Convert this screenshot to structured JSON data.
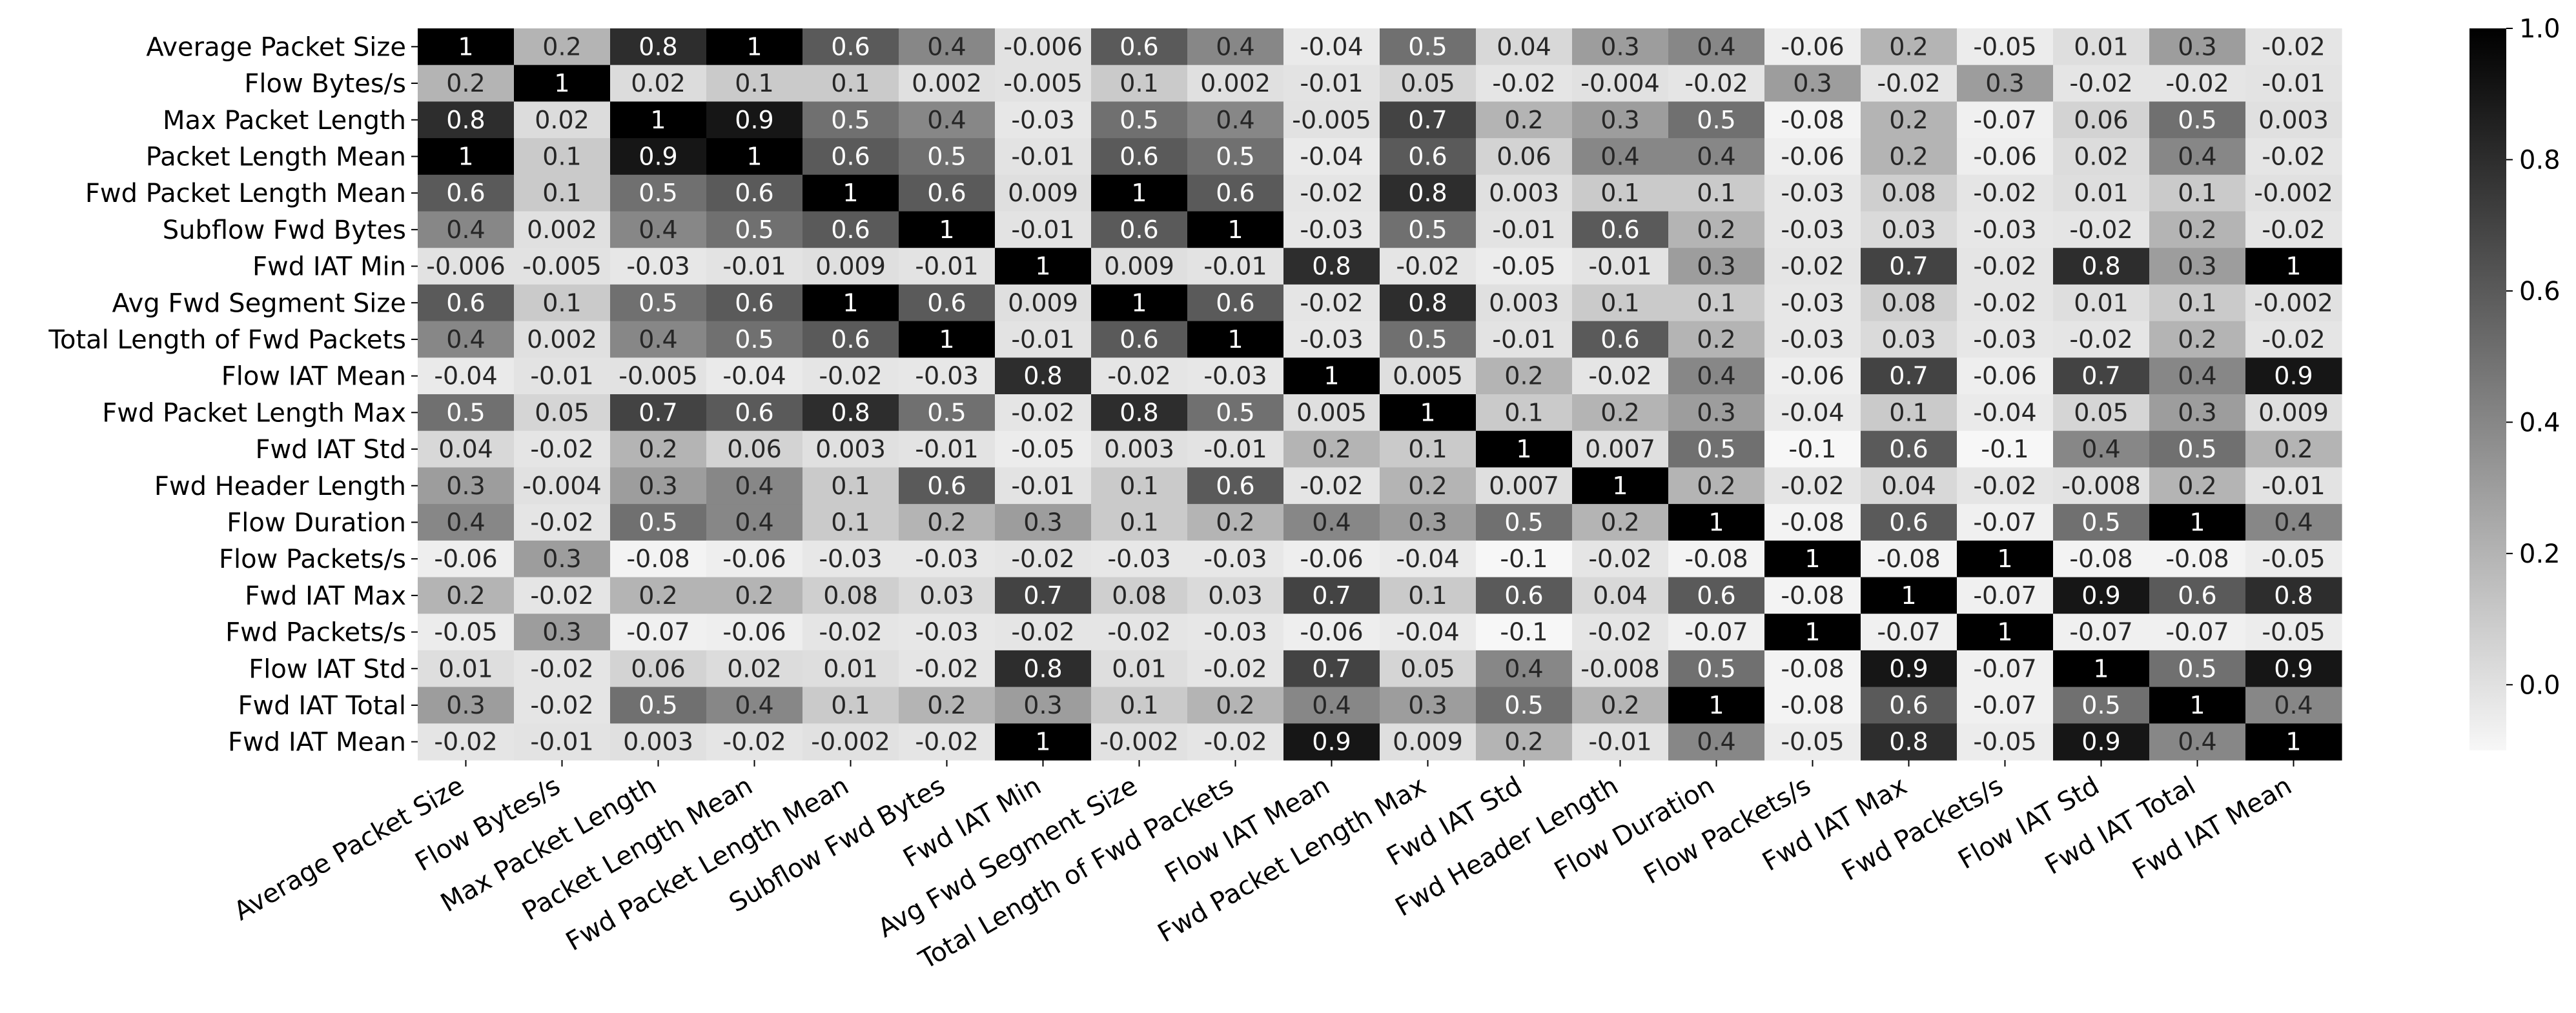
{
  "chart_data": {
    "type": "heatmap",
    "title": "",
    "xlabel": "",
    "ylabel": "",
    "rows": [
      "Average Packet Size",
      "Flow Bytes/s",
      "Max Packet Length",
      "Packet Length Mean",
      "Fwd Packet Length Mean",
      "Subflow Fwd Bytes",
      "Fwd IAT Min",
      "Avg Fwd Segment Size",
      "Total Length of Fwd Packets",
      "Flow IAT Mean",
      "Fwd Packet Length Max",
      "Fwd IAT Std",
      "Fwd Header Length",
      "Flow Duration",
      "Flow Packets/s",
      "Fwd IAT Max",
      "Fwd Packets/s",
      "Flow IAT Std",
      "Fwd IAT Total",
      "Fwd IAT Mean"
    ],
    "columns": [
      "Average Packet Size",
      "Flow Bytes/s",
      "Max Packet Length",
      "Packet Length Mean",
      "Fwd Packet Length Mean",
      "Subflow Fwd Bytes",
      "Fwd IAT Min",
      "Avg Fwd Segment Size",
      "Total Length of Fwd Packets",
      "Flow IAT Mean",
      "Fwd Packet Length Max",
      "Fwd IAT Std",
      "Fwd Header Length",
      "Flow Duration",
      "Flow Packets/s",
      "Fwd IAT Max",
      "Fwd Packets/s",
      "Flow IAT Std",
      "Fwd IAT Total",
      "Fwd IAT Mean"
    ],
    "labels": [
      [
        "1",
        "0.2",
        "0.8",
        "1",
        "0.6",
        "0.4",
        "-0.006",
        "0.6",
        "0.4",
        "-0.04",
        "0.5",
        "0.04",
        "0.3",
        "0.4",
        "-0.06",
        "0.2",
        "-0.05",
        "0.01",
        "0.3",
        "-0.02"
      ],
      [
        "0.2",
        "1",
        "0.02",
        "0.1",
        "0.1",
        "0.002",
        "-0.005",
        "0.1",
        "0.002",
        "-0.01",
        "0.05",
        "-0.02",
        "-0.004",
        "-0.02",
        "0.3",
        "-0.02",
        "0.3",
        "-0.02",
        "-0.02",
        "-0.01"
      ],
      [
        "0.8",
        "0.02",
        "1",
        "0.9",
        "0.5",
        "0.4",
        "-0.03",
        "0.5",
        "0.4",
        "-0.005",
        "0.7",
        "0.2",
        "0.3",
        "0.5",
        "-0.08",
        "0.2",
        "-0.07",
        "0.06",
        "0.5",
        "0.003"
      ],
      [
        "1",
        "0.1",
        "0.9",
        "1",
        "0.6",
        "0.5",
        "-0.01",
        "0.6",
        "0.5",
        "-0.04",
        "0.6",
        "0.06",
        "0.4",
        "0.4",
        "-0.06",
        "0.2",
        "-0.06",
        "0.02",
        "0.4",
        "-0.02"
      ],
      [
        "0.6",
        "0.1",
        "0.5",
        "0.6",
        "1",
        "0.6",
        "0.009",
        "1",
        "0.6",
        "-0.02",
        "0.8",
        "0.003",
        "0.1",
        "0.1",
        "-0.03",
        "0.08",
        "-0.02",
        "0.01",
        "0.1",
        "-0.002"
      ],
      [
        "0.4",
        "0.002",
        "0.4",
        "0.5",
        "0.6",
        "1",
        "-0.01",
        "0.6",
        "1",
        "-0.03",
        "0.5",
        "-0.01",
        "0.6",
        "0.2",
        "-0.03",
        "0.03",
        "-0.03",
        "-0.02",
        "0.2",
        "-0.02"
      ],
      [
        "-0.006",
        "-0.005",
        "-0.03",
        "-0.01",
        "0.009",
        "-0.01",
        "1",
        "0.009",
        "-0.01",
        "0.8",
        "-0.02",
        "-0.05",
        "-0.01",
        "0.3",
        "-0.02",
        "0.7",
        "-0.02",
        "0.8",
        "0.3",
        "1"
      ],
      [
        "0.6",
        "0.1",
        "0.5",
        "0.6",
        "1",
        "0.6",
        "0.009",
        "1",
        "0.6",
        "-0.02",
        "0.8",
        "0.003",
        "0.1",
        "0.1",
        "-0.03",
        "0.08",
        "-0.02",
        "0.01",
        "0.1",
        "-0.002"
      ],
      [
        "0.4",
        "0.002",
        "0.4",
        "0.5",
        "0.6",
        "1",
        "-0.01",
        "0.6",
        "1",
        "-0.03",
        "0.5",
        "-0.01",
        "0.6",
        "0.2",
        "-0.03",
        "0.03",
        "-0.03",
        "-0.02",
        "0.2",
        "-0.02"
      ],
      [
        "-0.04",
        "-0.01",
        "-0.005",
        "-0.04",
        "-0.02",
        "-0.03",
        "0.8",
        "-0.02",
        "-0.03",
        "1",
        "0.005",
        "0.2",
        "-0.02",
        "0.4",
        "-0.06",
        "0.7",
        "-0.06",
        "0.7",
        "0.4",
        "0.9"
      ],
      [
        "0.5",
        "0.05",
        "0.7",
        "0.6",
        "0.8",
        "0.5",
        "-0.02",
        "0.8",
        "0.5",
        "0.005",
        "1",
        "0.1",
        "0.2",
        "0.3",
        "-0.04",
        "0.1",
        "-0.04",
        "0.05",
        "0.3",
        "0.009"
      ],
      [
        "0.04",
        "-0.02",
        "0.2",
        "0.06",
        "0.003",
        "-0.01",
        "-0.05",
        "0.003",
        "-0.01",
        "0.2",
        "0.1",
        "1",
        "0.007",
        "0.5",
        "-0.1",
        "0.6",
        "-0.1",
        "0.4",
        "0.5",
        "0.2"
      ],
      [
        "0.3",
        "-0.004",
        "0.3",
        "0.4",
        "0.1",
        "0.6",
        "-0.01",
        "0.1",
        "0.6",
        "-0.02",
        "0.2",
        "0.007",
        "1",
        "0.2",
        "-0.02",
        "0.04",
        "-0.02",
        "-0.008",
        "0.2",
        "-0.01"
      ],
      [
        "0.4",
        "-0.02",
        "0.5",
        "0.4",
        "0.1",
        "0.2",
        "0.3",
        "0.1",
        "0.2",
        "0.4",
        "0.3",
        "0.5",
        "0.2",
        "1",
        "-0.08",
        "0.6",
        "-0.07",
        "0.5",
        "1",
        "0.4"
      ],
      [
        "-0.06",
        "0.3",
        "-0.08",
        "-0.06",
        "-0.03",
        "-0.03",
        "-0.02",
        "-0.03",
        "-0.03",
        "-0.06",
        "-0.04",
        "-0.1",
        "-0.02",
        "-0.08",
        "1",
        "-0.08",
        "1",
        "-0.08",
        "-0.08",
        "-0.05"
      ],
      [
        "0.2",
        "-0.02",
        "0.2",
        "0.2",
        "0.08",
        "0.03",
        "0.7",
        "0.08",
        "0.03",
        "0.7",
        "0.1",
        "0.6",
        "0.04",
        "0.6",
        "-0.08",
        "1",
        "-0.07",
        "0.9",
        "0.6",
        "0.8"
      ],
      [
        "-0.05",
        "0.3",
        "-0.07",
        "-0.06",
        "-0.02",
        "-0.03",
        "-0.02",
        "-0.02",
        "-0.03",
        "-0.06",
        "-0.04",
        "-0.1",
        "-0.02",
        "-0.07",
        "1",
        "-0.07",
        "1",
        "-0.07",
        "-0.07",
        "-0.05"
      ],
      [
        "0.01",
        "-0.02",
        "0.06",
        "0.02",
        "0.01",
        "-0.02",
        "0.8",
        "0.01",
        "-0.02",
        "0.7",
        "0.05",
        "0.4",
        "-0.008",
        "0.5",
        "-0.08",
        "0.9",
        "-0.07",
        "1",
        "0.5",
        "0.9"
      ],
      [
        "0.3",
        "-0.02",
        "0.5",
        "0.4",
        "0.1",
        "0.2",
        "0.3",
        "0.1",
        "0.2",
        "0.4",
        "0.3",
        "0.5",
        "0.2",
        "1",
        "-0.08",
        "0.6",
        "-0.07",
        "0.5",
        "1",
        "0.4"
      ],
      [
        "-0.02",
        "-0.01",
        "0.003",
        "-0.02",
        "-0.002",
        "-0.02",
        "1",
        "-0.002",
        "-0.02",
        "0.9",
        "0.009",
        "0.2",
        "-0.01",
        "0.4",
        "-0.05",
        "0.8",
        "-0.05",
        "0.9",
        "0.4",
        "1"
      ]
    ],
    "colorbar": {
      "min": -0.1,
      "max": 1.0,
      "ticks": [
        0.0,
        0.2,
        0.4,
        0.6,
        0.8,
        1.0
      ],
      "tick_labels": [
        "0.0",
        "0.2",
        "0.4",
        "0.6",
        "0.8",
        "1.0"
      ],
      "colormap": "white-to-black",
      "low_color": "#ffffff",
      "high_color": "#000000"
    },
    "legend": "right",
    "grid": false
  }
}
